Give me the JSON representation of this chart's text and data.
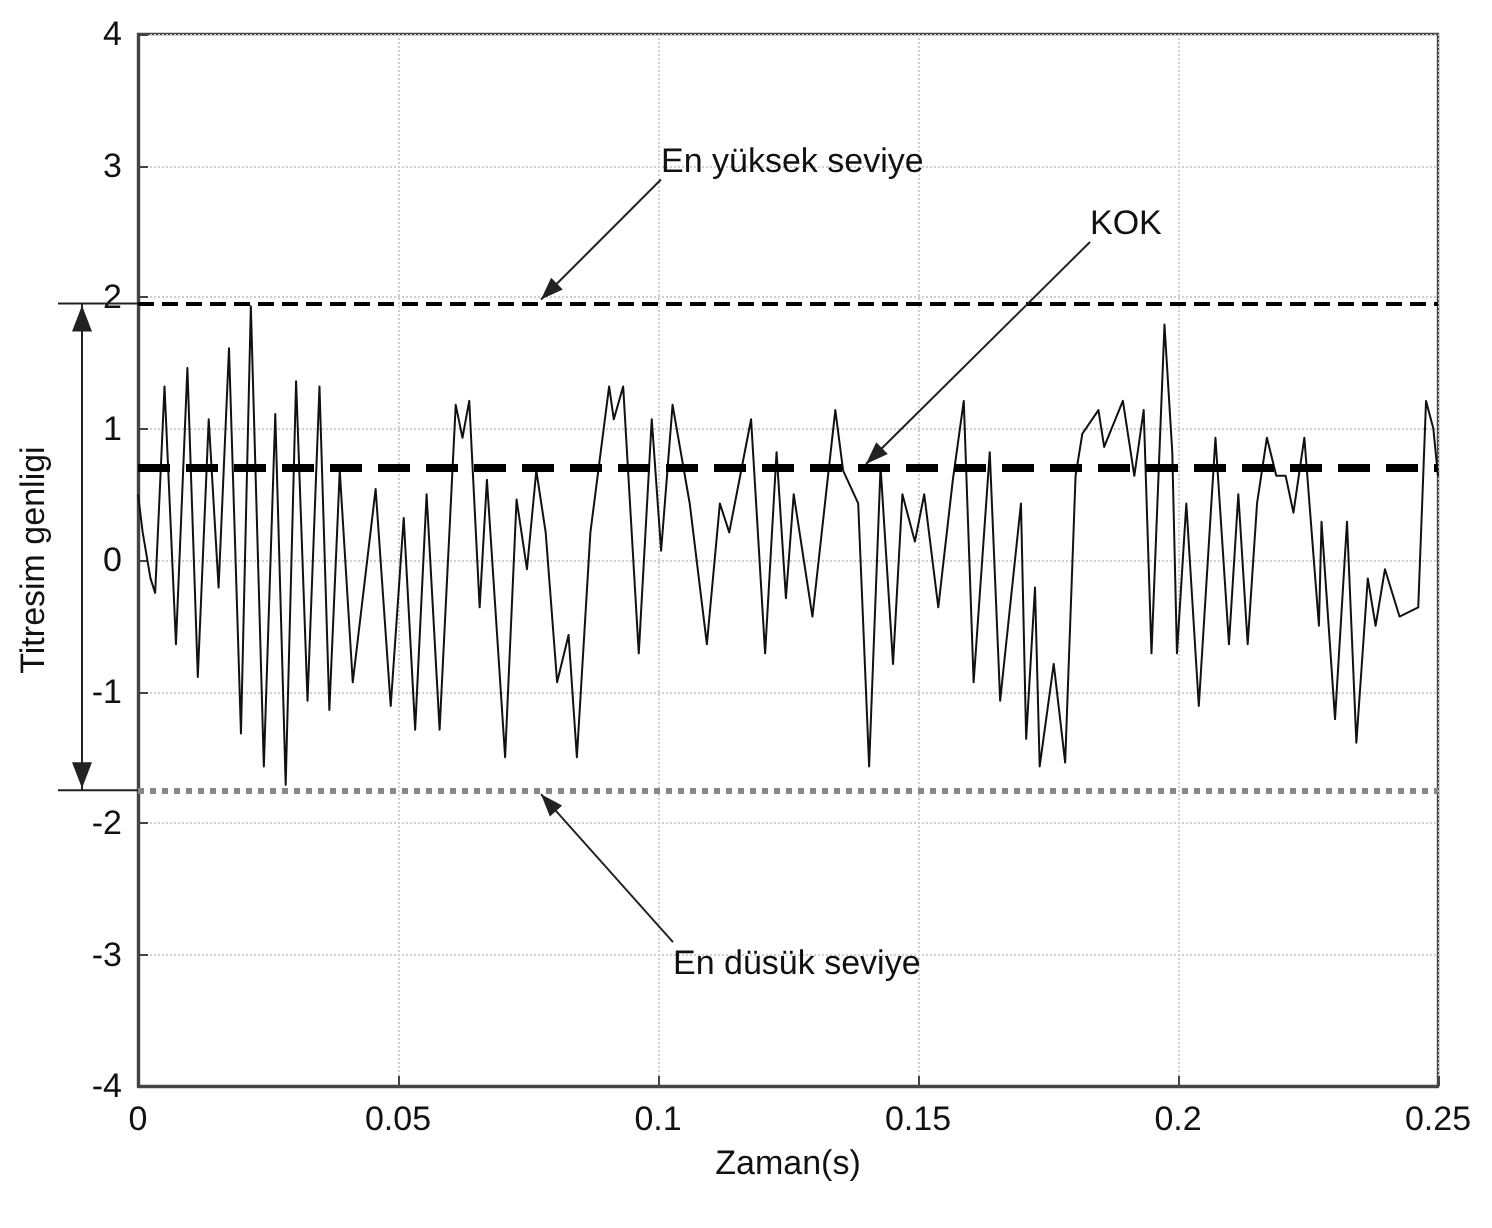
{
  "chart_data": {
    "type": "line",
    "xlabel": "Zaman(s)",
    "ylabel": "Titresim genligi",
    "xlim": [
      0,
      0.25
    ],
    "xticks": [
      0,
      0.05,
      0.1,
      0.15,
      0.2,
      0.25
    ],
    "ylim": [
      -4,
      4
    ],
    "yticks": [
      -4,
      -3,
      -2,
      -1,
      0,
      1,
      2,
      3,
      4
    ],
    "grid": true,
    "marker": "none",
    "line_style": "solid",
    "series": [
      {
        "color": "#111111",
        "x": [
          0,
          0.0009,
          0.0024,
          0.0033,
          0.0051,
          0.0073,
          0.0095,
          0.0115,
          0.0136,
          0.0155,
          0.0175,
          0.0198,
          0.0217,
          0.0242,
          0.0264,
          0.0284,
          0.0304,
          0.0326,
          0.0349,
          0.0368,
          0.0388,
          0.0413,
          0.0457,
          0.0486,
          0.0511,
          0.0533,
          0.0555,
          0.058,
          0.0611,
          0.0624,
          0.0637,
          0.0657,
          0.0671,
          0.0706,
          0.0728,
          0.0748,
          0.0766,
          0.0784,
          0.0806,
          0.0828,
          0.0844,
          0.087,
          0.0906,
          0.0915,
          0.0933,
          0.0963,
          0.0988,
          0.1006,
          0.1028,
          0.1061,
          0.1094,
          0.1119,
          0.1137,
          0.1179,
          0.1206,
          0.1228,
          0.1246,
          0.1261,
          0.1297,
          0.1341,
          0.1356,
          0.1385,
          0.1406,
          0.1428,
          0.1452,
          0.147,
          0.1494,
          0.1512,
          0.1539,
          0.1567,
          0.1588,
          0.1607,
          0.1638,
          0.1658,
          0.1698,
          0.1708,
          0.1725,
          0.1734,
          0.1761,
          0.1783,
          0.1803,
          0.1816,
          0.1847,
          0.1858,
          0.1894,
          0.1916,
          0.1934,
          0.1949,
          0.1974,
          0.1989,
          0.1998,
          0.2016,
          0.204,
          0.2072,
          0.2098,
          0.2116,
          0.2134,
          0.2152,
          0.2171,
          0.2189,
          0.2207,
          0.2222,
          0.2243,
          0.2271,
          0.2276,
          0.2302,
          0.2325,
          0.2343,
          0.2365,
          0.238,
          0.2398,
          0.2426,
          0.2462,
          0.2477,
          0.2491,
          0.25
        ],
        "values": [
          0.5,
          0.21,
          -0.14,
          -0.25,
          1.32,
          -0.64,
          1.46,
          -0.89,
          1.07,
          -0.21,
          1.61,
          -1.32,
          1.93,
          -1.57,
          1.11,
          -1.71,
          1.36,
          -1.07,
          1.32,
          -1.14,
          0.68,
          -0.93,
          0.54,
          -1.11,
          0.32,
          -1.29,
          0.5,
          -1.29,
          1.18,
          0.93,
          1.21,
          -0.36,
          0.61,
          -1.5,
          0.46,
          -0.07,
          0.68,
          0.21,
          -0.93,
          -0.57,
          -1.5,
          0.21,
          1.32,
          1.07,
          1.32,
          -0.71,
          1.07,
          0.07,
          1.18,
          0.43,
          -0.64,
          0.43,
          0.21,
          1.07,
          -0.71,
          0.82,
          -0.29,
          0.5,
          -0.43,
          1.14,
          0.68,
          0.43,
          -1.57,
          0.71,
          -0.79,
          0.5,
          0.14,
          0.5,
          -0.36,
          0.61,
          1.21,
          -0.93,
          0.82,
          -1.07,
          0.43,
          -1.36,
          -0.21,
          -1.57,
          -0.79,
          -1.54,
          0.64,
          0.96,
          1.14,
          0.86,
          1.21,
          0.64,
          1.14,
          -0.71,
          1.79,
          0.82,
          -0.71,
          0.43,
          -1.11,
          0.93,
          -0.64,
          0.5,
          -0.64,
          0.43,
          0.93,
          0.64,
          0.64,
          0.36,
          0.93,
          -0.5,
          0.29,
          -1.21,
          0.29,
          -1.39,
          -0.14,
          -0.5,
          -0.07,
          -0.43,
          -0.36,
          1.21,
          1.0,
          0.64
        ]
      }
    ],
    "ref_lines": [
      {
        "axis": "y",
        "value": 1.95,
        "label": "En yüksek seviye",
        "color": "#000000",
        "line_style": "dashed"
      },
      {
        "axis": "y",
        "value": 0.7,
        "label": "KOK",
        "color": "#000000",
        "line_style": "dashed"
      },
      {
        "axis": "y",
        "value": -1.75,
        "label": "En düsük seviye",
        "color": "#888888",
        "line_style": "dotted"
      }
    ]
  }
}
